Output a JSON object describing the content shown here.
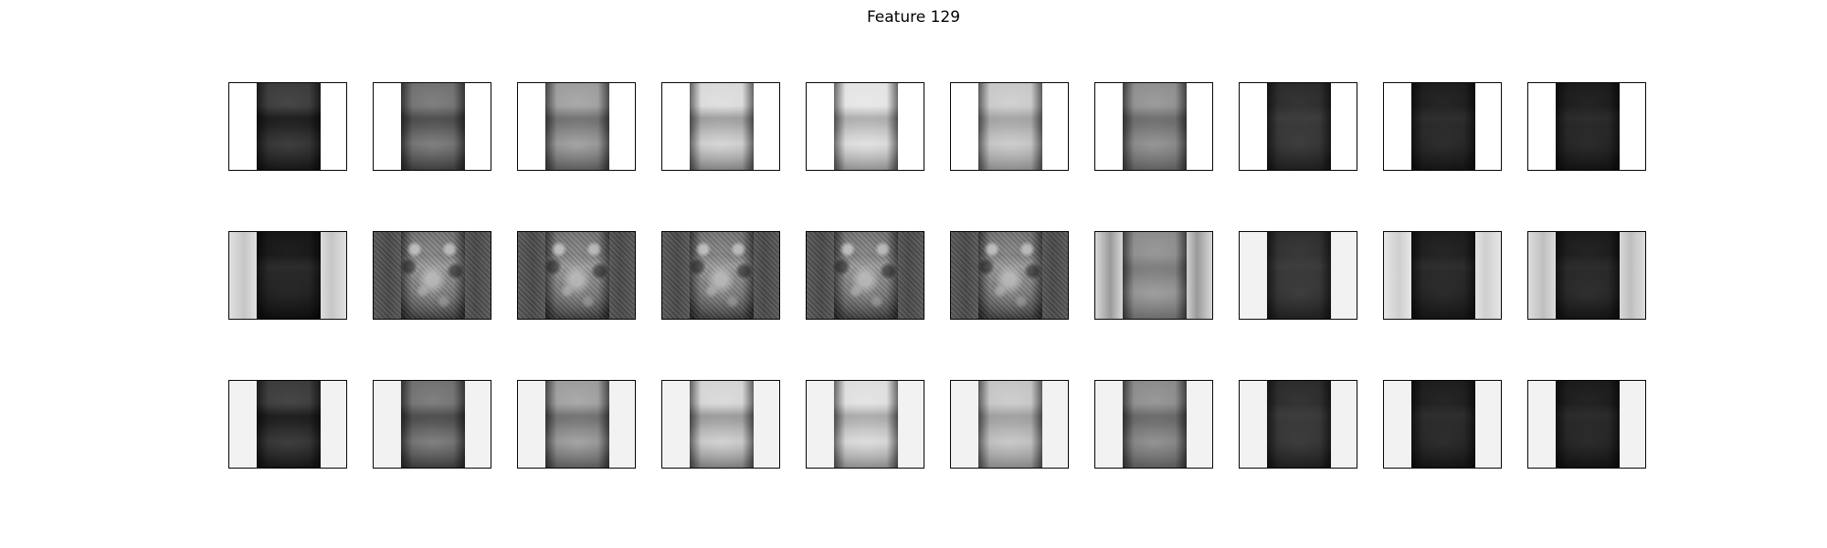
{
  "figure": {
    "title": "Feature 129"
  },
  "rows": [
    {
      "panels": [
        {
          "bg": "#ffffff",
          "strip": [
            "#3a3a3a",
            "#1c1c1c",
            "#2e2e2e",
            "#161616"
          ],
          "glow": 0.18
        },
        {
          "bg": "#ffffff",
          "strip": [
            "#6e6e6e",
            "#4a4a4a",
            "#6a6a6a",
            "#3c3c3c"
          ],
          "glow": 0.35
        },
        {
          "bg": "#ffffff",
          "strip": [
            "#9a9a9a",
            "#6e6e6e",
            "#8e8e8e",
            "#5a5a5a"
          ],
          "glow": 0.45
        },
        {
          "bg": "#ffffff",
          "strip": [
            "#d8d8d8",
            "#9a9a9a",
            "#c8c8c8",
            "#808080"
          ],
          "glow": 0.6
        },
        {
          "bg": "#ffffff",
          "strip": [
            "#e2e2e2",
            "#aaaaaa",
            "#d6d6d6",
            "#8e8e8e"
          ],
          "glow": 0.65
        },
        {
          "bg": "#ffffff",
          "strip": [
            "#c6c6c6",
            "#a0a0a0",
            "#bebebe",
            "#8a8a8a"
          ],
          "glow": 0.55
        },
        {
          "bg": "#ffffff",
          "strip": [
            "#8c8c8c",
            "#6a6a6a",
            "#808080",
            "#5e5e5e"
          ],
          "glow": 0.4
        },
        {
          "bg": "#ffffff",
          "strip": [
            "#2a2a2a",
            "#3a3a3a",
            "#303030",
            "#1e1e1e"
          ],
          "glow": 0.15
        },
        {
          "bg": "#ffffff",
          "strip": [
            "#1c1c1c",
            "#2c2c2c",
            "#222222",
            "#141414"
          ],
          "glow": 0.12
        },
        {
          "bg": "#ffffff",
          "strip": [
            "#1a1a1a",
            "#2a2a2a",
            "#202020",
            "#121212"
          ],
          "glow": 0.12
        }
      ]
    },
    {
      "panels": [
        {
          "bg": "#e0e0e0",
          "strip": [
            "#161616",
            "#2a2a2a",
            "#1e1e1e",
            "#0e0e0e"
          ],
          "glow": 0.1,
          "edgeShade": "#c6c6c6"
        },
        {
          "bg": "#5a5a5a",
          "strip": [
            "#707070",
            "#9a9a9a",
            "#6a6a6a",
            "#3a3a3a"
          ],
          "glow": 0.5,
          "noisy": true,
          "edgeShade": "#4a4a4a"
        },
        {
          "bg": "#5a5a5a",
          "strip": [
            "#707070",
            "#9a9a9a",
            "#6a6a6a",
            "#3a3a3a"
          ],
          "glow": 0.5,
          "noisy": true,
          "edgeShade": "#4a4a4a"
        },
        {
          "bg": "#5a5a5a",
          "strip": [
            "#707070",
            "#9a9a9a",
            "#6a6a6a",
            "#3a3a3a"
          ],
          "glow": 0.5,
          "noisy": true,
          "edgeShade": "#4a4a4a"
        },
        {
          "bg": "#5a5a5a",
          "strip": [
            "#707070",
            "#9a9a9a",
            "#6a6a6a",
            "#3a3a3a"
          ],
          "glow": 0.5,
          "noisy": true,
          "edgeShade": "#4a4a4a"
        },
        {
          "bg": "#5a5a5a",
          "strip": [
            "#707070",
            "#9a9a9a",
            "#6a6a6a",
            "#3a3a3a"
          ],
          "glow": 0.5,
          "noisy": true,
          "edgeShade": "#4a4a4a"
        },
        {
          "bg": "#d8d8d8",
          "strip": [
            "#8a8a8a",
            "#7a7a7a",
            "#8e8e8e",
            "#6a6a6a"
          ],
          "glow": 0.35,
          "edgeShade": "#9a9a9a"
        },
        {
          "bg": "#f2f2f2",
          "strip": [
            "#2e2e2e",
            "#3a3a3a",
            "#303030",
            "#202020"
          ],
          "glow": 0.15,
          "edgeShade": "#f2f2f2"
        },
        {
          "bg": "#e6e6e6",
          "strip": [
            "#1c1c1c",
            "#2c2c2c",
            "#202020",
            "#141414"
          ],
          "glow": 0.12,
          "edgeShade": "#cfcfcf"
        },
        {
          "bg": "#dcdcdc",
          "strip": [
            "#1a1a1a",
            "#2a2a2a",
            "#242424",
            "#141414"
          ],
          "glow": 0.12,
          "edgeShade": "#bfbfbf"
        }
      ]
    },
    {
      "panels": [
        {
          "bg": "#f2f2f2",
          "strip": [
            "#3a3a3a",
            "#1c1c1c",
            "#2e2e2e",
            "#161616"
          ],
          "glow": 0.18
        },
        {
          "bg": "#f2f2f2",
          "strip": [
            "#6e6e6e",
            "#4a4a4a",
            "#6a6a6a",
            "#3c3c3c"
          ],
          "glow": 0.35
        },
        {
          "bg": "#f2f2f2",
          "strip": [
            "#9a9a9a",
            "#6e6e6e",
            "#8e8e8e",
            "#5a5a5a"
          ],
          "glow": 0.45
        },
        {
          "bg": "#f2f2f2",
          "strip": [
            "#d2d2d2",
            "#969696",
            "#c2c2c2",
            "#7c7c7c"
          ],
          "glow": 0.6
        },
        {
          "bg": "#f2f2f2",
          "strip": [
            "#dcdcdc",
            "#a6a6a6",
            "#d0d0d0",
            "#8a8a8a"
          ],
          "glow": 0.65
        },
        {
          "bg": "#f2f2f2",
          "strip": [
            "#c2c2c2",
            "#9c9c9c",
            "#b8b8b8",
            "#868686"
          ],
          "glow": 0.55
        },
        {
          "bg": "#f2f2f2",
          "strip": [
            "#888888",
            "#666666",
            "#7c7c7c",
            "#5a5a5a"
          ],
          "glow": 0.4
        },
        {
          "bg": "#f2f2f2",
          "strip": [
            "#2a2a2a",
            "#3a3a3a",
            "#303030",
            "#1e1e1e"
          ],
          "glow": 0.15
        },
        {
          "bg": "#f2f2f2",
          "strip": [
            "#1c1c1c",
            "#2c2c2c",
            "#222222",
            "#141414"
          ],
          "glow": 0.12
        },
        {
          "bg": "#f2f2f2",
          "strip": [
            "#1a1a1a",
            "#2a2a2a",
            "#202020",
            "#121212"
          ],
          "glow": 0.12
        }
      ]
    }
  ]
}
